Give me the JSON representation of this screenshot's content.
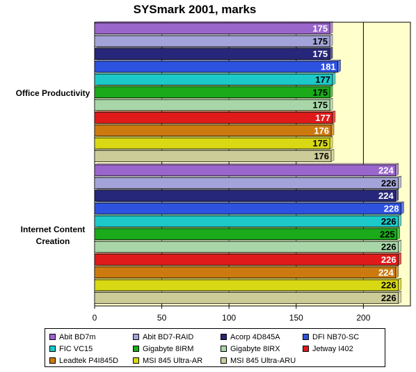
{
  "chart_data": {
    "type": "bar",
    "orientation": "horizontal",
    "title": "SYSmark 2001, marks",
    "categories": [
      "Office Productivity",
      "Internet Content Creation"
    ],
    "xlim": [
      0,
      235
    ],
    "xticks": [
      "0",
      "50",
      "100",
      "150",
      "200"
    ],
    "grid": true,
    "legend_position": "bottom",
    "series": [
      {
        "name": "Abit BD7m",
        "color": "#9966cc",
        "values": [
          175,
          224
        ]
      },
      {
        "name": "Abit BD7-RAID",
        "color": "#a3a3d9",
        "values": [
          175,
          226
        ]
      },
      {
        "name": "Acorp 4D845A",
        "color": "#26267a",
        "values": [
          175,
          224
        ]
      },
      {
        "name": "DFI NB70-SC",
        "color": "#2e52e0",
        "values": [
          181,
          228
        ]
      },
      {
        "name": "FIC VC15",
        "color": "#1cc8c8",
        "values": [
          177,
          226
        ]
      },
      {
        "name": "Gigabyte 8IRM",
        "color": "#1aaa1a",
        "values": [
          175,
          225
        ]
      },
      {
        "name": "Gigabyte 8IRX",
        "color": "#a8d6a8",
        "values": [
          175,
          226
        ]
      },
      {
        "name": "Jetway I402",
        "color": "#e01a1a",
        "values": [
          177,
          226
        ]
      },
      {
        "name": "Leadtek P4I845D",
        "color": "#cc7a10",
        "values": [
          176,
          224
        ]
      },
      {
        "name": "MSI 845 Ultra-AR",
        "color": "#d8d814",
        "values": [
          175,
          226
        ]
      },
      {
        "name": "MSI 845 Ultra-ARU",
        "color": "#cccc99",
        "values": [
          176,
          226
        ]
      }
    ]
  }
}
